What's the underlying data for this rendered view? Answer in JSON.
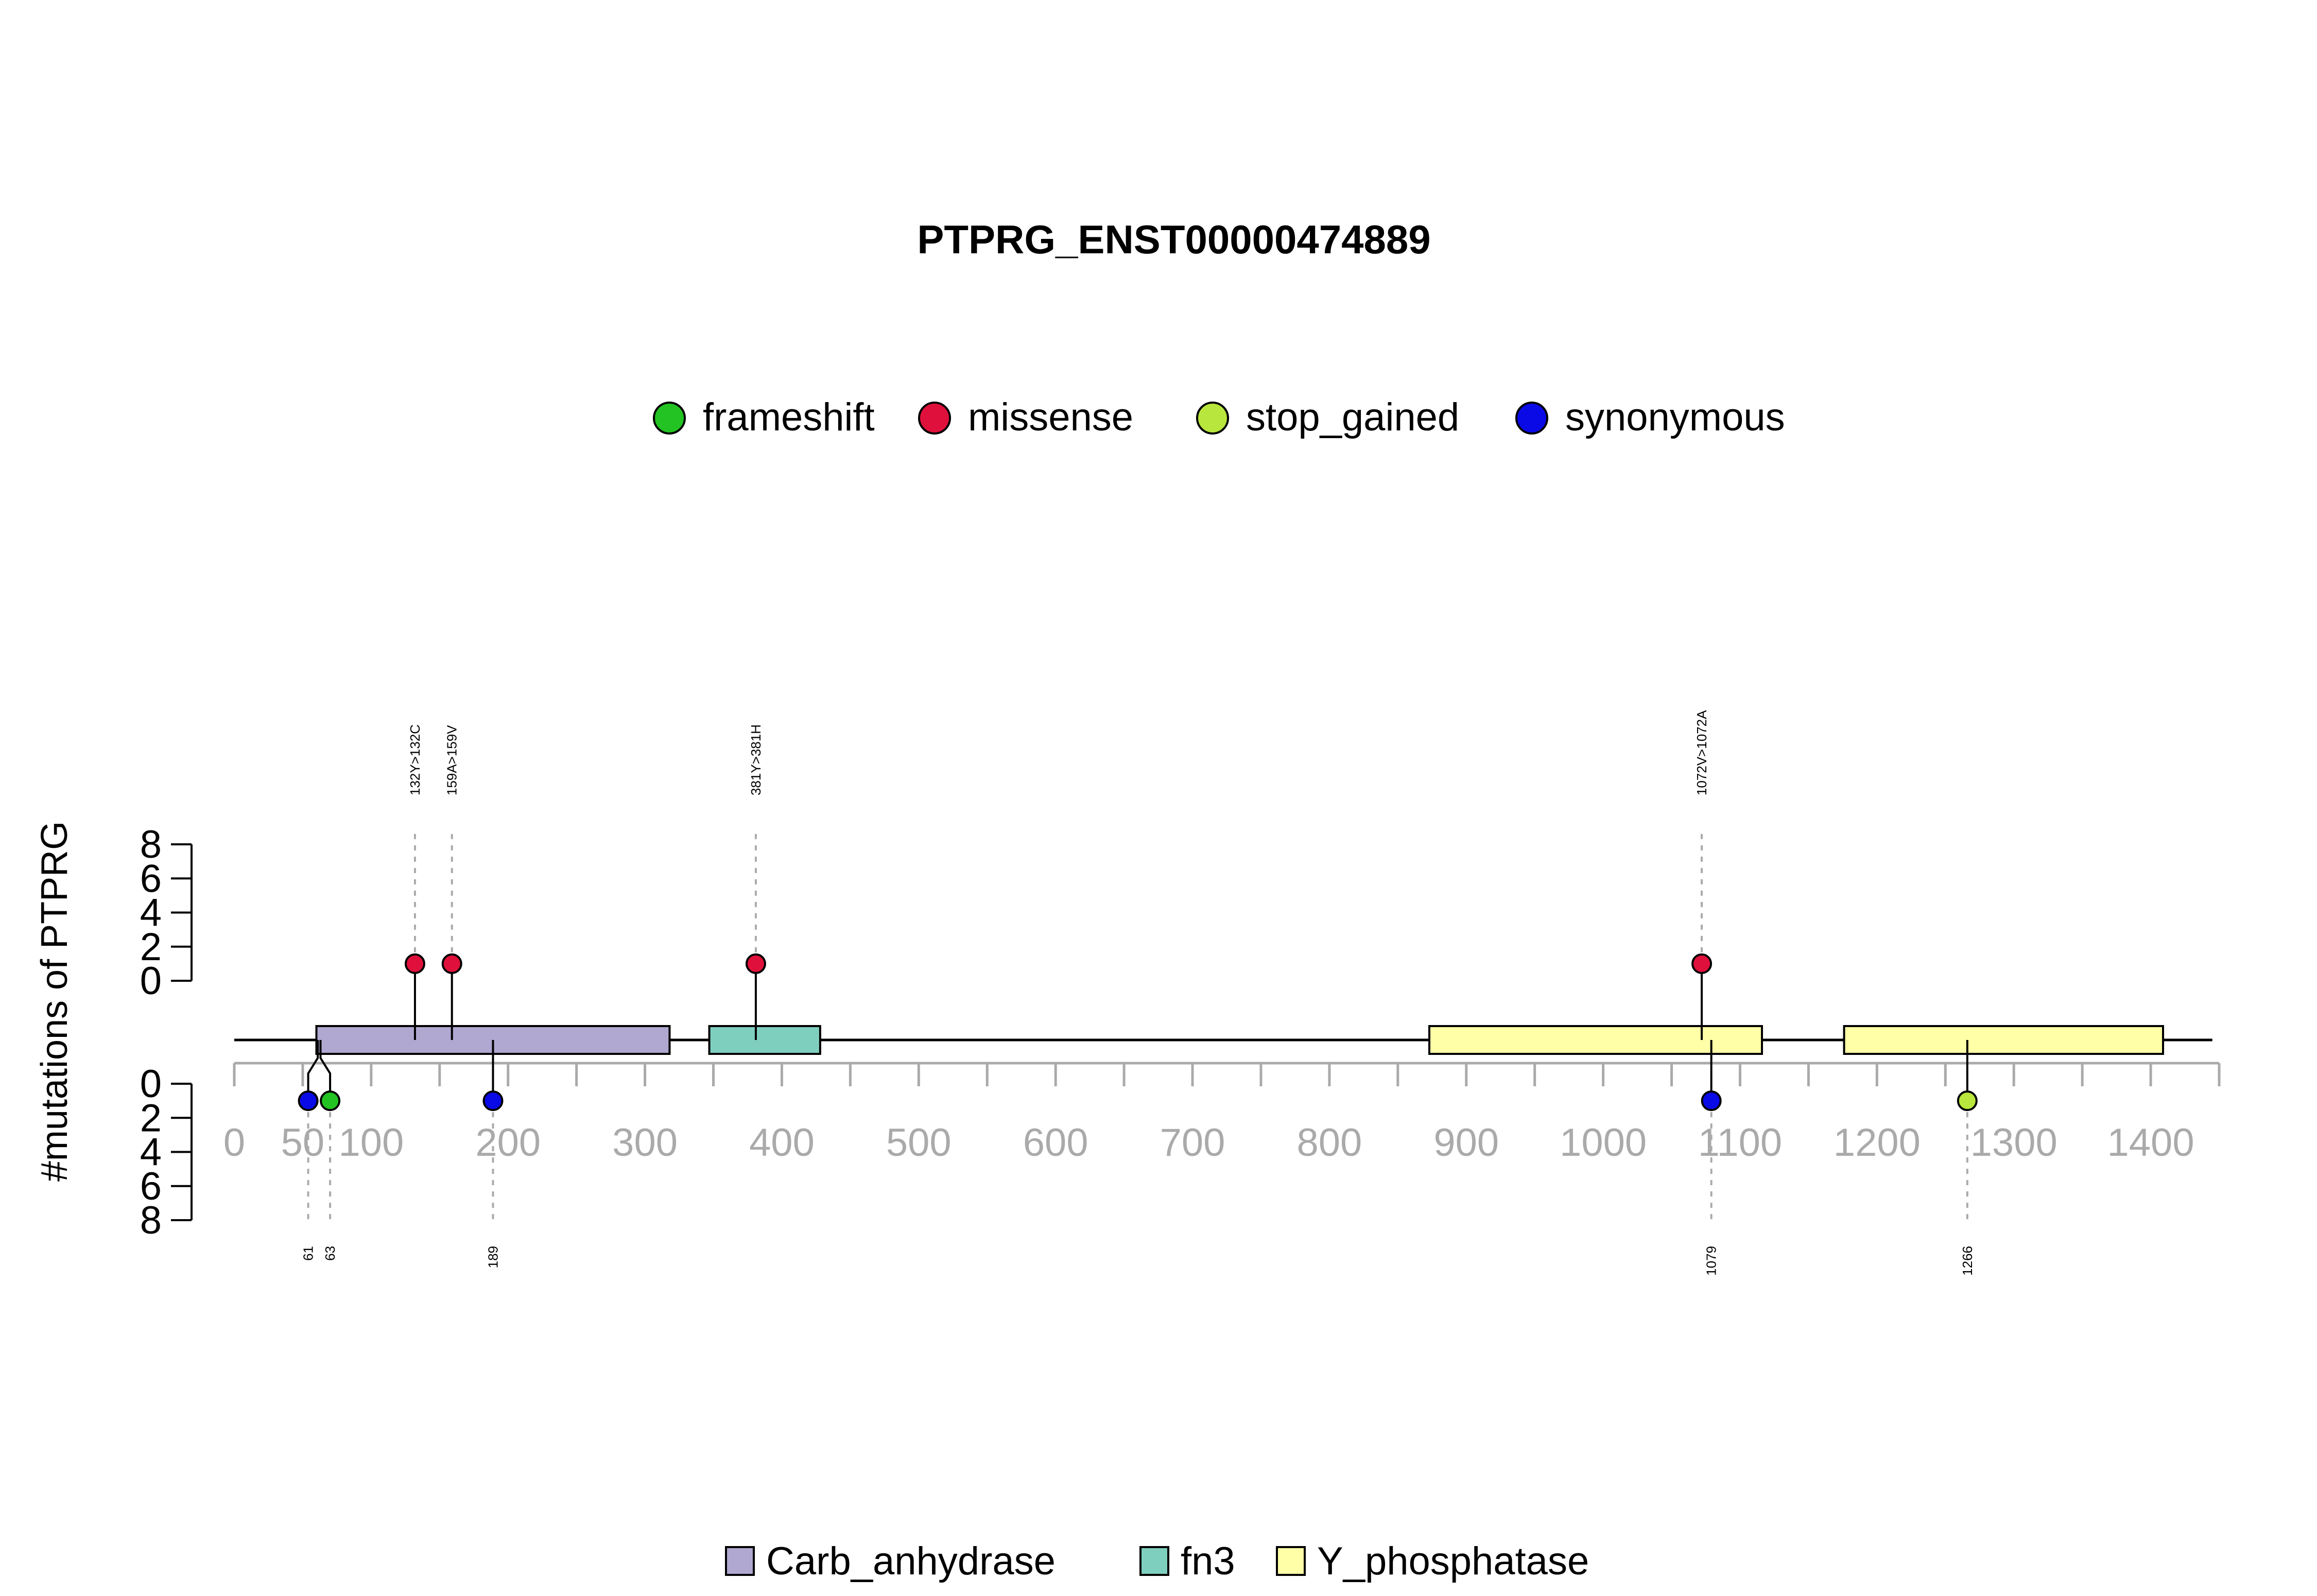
{
  "chart_data": {
    "type": "lollipop",
    "title": "PTPRG_ENST00000474889",
    "ylabel": "#mutations of PTPRG",
    "protein_length": 1445,
    "xlim": [
      0,
      1450
    ],
    "x_ticks": [
      0,
      50,
      100,
      200,
      300,
      400,
      500,
      600,
      700,
      800,
      900,
      1000,
      1100,
      1200,
      1300,
      1400
    ],
    "y_ticks": [
      0,
      2,
      4,
      6,
      8
    ],
    "ylim": [
      0,
      8
    ],
    "legend_mutations": [
      {
        "name": "frameshift",
        "color": "#22c322"
      },
      {
        "name": "missense",
        "color": "#e0103c"
      },
      {
        "name": "stop_gained",
        "color": "#b8e63c"
      },
      {
        "name": "synonymous",
        "color": "#0a0ae6"
      }
    ],
    "domains": [
      {
        "name": "Carb_anhydrase",
        "start": 60,
        "end": 318,
        "color": "#b0a8d0"
      },
      {
        "name": "fn3",
        "start": 347,
        "end": 428,
        "color": "#7fcfbf"
      },
      {
        "name": "Y_phosphatase",
        "start": 873,
        "end": 1116,
        "color": "#ffffa8"
      },
      {
        "name": "Y_phosphatase",
        "start": 1176,
        "end": 1409,
        "color": "#ffffa8"
      }
    ],
    "legend_domains": [
      {
        "name": "Carb_anhydrase",
        "color": "#b0a8d0"
      },
      {
        "name": "fn3",
        "color": "#7fcfbf"
      },
      {
        "name": "Y_phosphatase",
        "color": "#ffffa8"
      }
    ],
    "mutations_top": [
      {
        "pos": 132,
        "count": 1,
        "type": "missense",
        "label": "132Y>132C"
      },
      {
        "pos": 159,
        "count": 1,
        "type": "missense",
        "label": "159A>159V"
      },
      {
        "pos": 381,
        "count": 1,
        "type": "missense",
        "label": "381Y>381H"
      },
      {
        "pos": 1072,
        "count": 1,
        "type": "missense",
        "label": "1072V>1072A"
      }
    ],
    "mutations_bottom": [
      {
        "pos": 61,
        "count": 1,
        "type": "synonymous",
        "label": "61",
        "display_pos": 54
      },
      {
        "pos": 63,
        "count": 1,
        "type": "frameshift",
        "label": "63",
        "display_pos": 70
      },
      {
        "pos": 189,
        "count": 1,
        "type": "synonymous",
        "label": "189"
      },
      {
        "pos": 1079,
        "count": 1,
        "type": "synonymous",
        "label": "1079"
      },
      {
        "pos": 1266,
        "count": 1,
        "type": "stop_gained",
        "label": "1266"
      }
    ]
  }
}
